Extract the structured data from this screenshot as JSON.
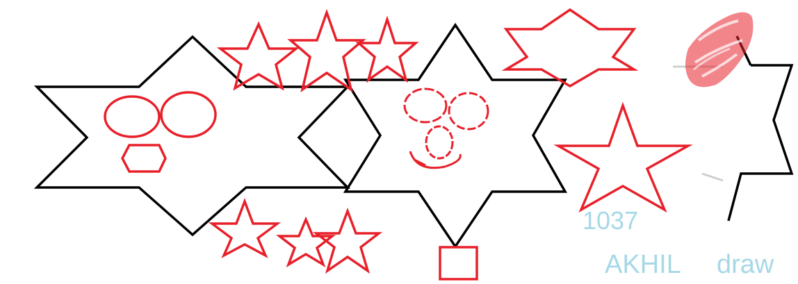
{
  "drawing": {
    "number_label": "1037",
    "name_label": "AKHIL",
    "tool_label": "draw"
  },
  "colors": {
    "background": "#ffffff",
    "outline": "#000000",
    "accent": "#e8202a",
    "label": "#a6d8e6"
  },
  "icons": [
    "hexagram-outline",
    "five-point-star",
    "ellipse",
    "hexagon",
    "square",
    "red-scribble"
  ]
}
